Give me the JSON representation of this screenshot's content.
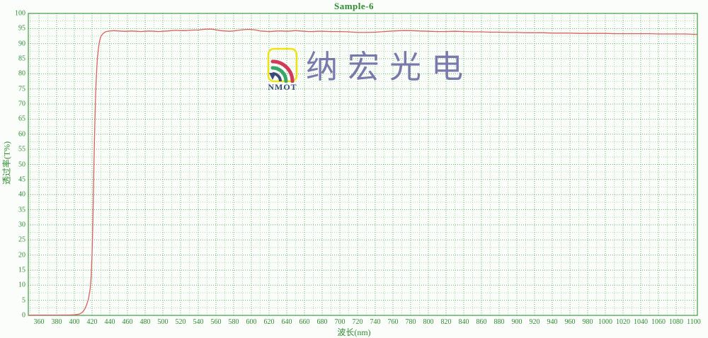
{
  "title": "Sample-6",
  "watermark": {
    "logo_text": "NMOT",
    "company_name": "纳宏光电"
  },
  "colors": {
    "background": "#fbfdfb",
    "axis_border": "#3f9e3f",
    "major_grid": "#63b063",
    "minor_grid": "#b2d8b2",
    "label_text": "#2e8b2e",
    "curve": "#dc6060",
    "watermark_text": "#6f6fa5",
    "logo_yellow": "#ece400",
    "logo_red": "#cf2b4b",
    "logo_green": "#2aa05e",
    "logo_navy": "#2f3a72"
  },
  "chart_data": {
    "type": "line",
    "title": "Sample-6",
    "xlabel": "波长(nm)",
    "ylabel": "透过率(T%)",
    "xlim": [
      348,
      1104
    ],
    "ylim": [
      0,
      100
    ],
    "x_tick_step": 20,
    "x_minor_step": 10,
    "y_tick_step": 5,
    "y_minor_step": 2.5,
    "grid": "dotted major and minor, green",
    "legend": "none",
    "x_ticks": [
      360,
      380,
      400,
      420,
      440,
      460,
      480,
      500,
      520,
      540,
      560,
      580,
      600,
      620,
      640,
      660,
      680,
      700,
      720,
      740,
      760,
      780,
      800,
      820,
      840,
      860,
      880,
      900,
      920,
      940,
      960,
      980,
      1000,
      1020,
      1040,
      1060,
      1080,
      1100
    ],
    "y_ticks": [
      0,
      5,
      10,
      15,
      20,
      25,
      30,
      35,
      40,
      45,
      50,
      55,
      60,
      65,
      70,
      75,
      80,
      85,
      90,
      95,
      100
    ],
    "series": [
      {
        "name": "Sample-6",
        "color": "#dc6060",
        "points": [
          [
            348,
            0.1
          ],
          [
            360,
            0.1
          ],
          [
            370,
            0.1
          ],
          [
            380,
            0.1
          ],
          [
            390,
            0.12
          ],
          [
            395,
            0.15
          ],
          [
            400,
            0.2
          ],
          [
            403,
            0.3
          ],
          [
            406,
            0.5
          ],
          [
            408,
            0.8
          ],
          [
            410,
            1.3
          ],
          [
            412,
            2.2
          ],
          [
            414,
            3.6
          ],
          [
            416,
            5.5
          ],
          [
            418,
            9
          ],
          [
            419,
            13
          ],
          [
            420,
            20
          ],
          [
            421,
            32
          ],
          [
            422,
            48
          ],
          [
            423,
            62
          ],
          [
            424,
            73
          ],
          [
            425,
            80
          ],
          [
            426,
            85
          ],
          [
            427,
            88
          ],
          [
            428,
            90
          ],
          [
            429,
            91.5
          ],
          [
            430,
            92.4
          ],
          [
            432,
            93.2
          ],
          [
            434,
            93.7
          ],
          [
            436,
            94
          ],
          [
            440,
            94.2
          ],
          [
            445,
            94.3
          ],
          [
            450,
            94.2
          ],
          [
            455,
            94.1
          ],
          [
            460,
            94.1
          ],
          [
            465,
            94.2
          ],
          [
            470,
            94.1
          ],
          [
            475,
            94
          ],
          [
            480,
            94.1
          ],
          [
            485,
            94.2
          ],
          [
            490,
            94.1
          ],
          [
            495,
            94
          ],
          [
            500,
            94.1
          ],
          [
            505,
            94.2
          ],
          [
            510,
            94.3
          ],
          [
            515,
            94.4
          ],
          [
            520,
            94.3
          ],
          [
            525,
            94.3
          ],
          [
            530,
            94.4
          ],
          [
            535,
            94.5
          ],
          [
            540,
            94.5
          ],
          [
            545,
            94.7
          ],
          [
            550,
            94.8
          ],
          [
            555,
            94.8
          ],
          [
            560,
            94.6
          ],
          [
            565,
            94.3
          ],
          [
            570,
            94.2
          ],
          [
            575,
            94.1
          ],
          [
            580,
            94.2
          ],
          [
            585,
            94.4
          ],
          [
            590,
            94.6
          ],
          [
            595,
            94.7
          ],
          [
            600,
            94.7
          ],
          [
            605,
            94.5
          ],
          [
            610,
            94.2
          ],
          [
            615,
            94.1
          ],
          [
            620,
            94
          ],
          [
            625,
            94.1
          ],
          [
            630,
            94.2
          ],
          [
            635,
            94.2
          ],
          [
            640,
            94.1
          ],
          [
            645,
            94.2
          ],
          [
            650,
            94.3
          ],
          [
            655,
            94.2
          ],
          [
            660,
            94.1
          ],
          [
            665,
            94
          ],
          [
            670,
            94
          ],
          [
            675,
            94.1
          ],
          [
            680,
            94.1
          ],
          [
            690,
            94
          ],
          [
            700,
            94
          ],
          [
            710,
            93.9
          ],
          [
            720,
            93.7
          ],
          [
            730,
            93.7
          ],
          [
            740,
            93.8
          ],
          [
            750,
            94
          ],
          [
            760,
            94.2
          ],
          [
            770,
            94.3
          ],
          [
            780,
            94.3
          ],
          [
            790,
            94.2
          ],
          [
            800,
            94.1
          ],
          [
            810,
            94
          ],
          [
            820,
            94
          ],
          [
            830,
            94.1
          ],
          [
            840,
            94
          ],
          [
            850,
            93.9
          ],
          [
            860,
            93.9
          ],
          [
            870,
            93.8
          ],
          [
            880,
            93.8
          ],
          [
            890,
            93.7
          ],
          [
            900,
            93.7
          ],
          [
            910,
            93.6
          ],
          [
            920,
            93.6
          ],
          [
            930,
            93.6
          ],
          [
            940,
            93.5
          ],
          [
            950,
            93.5
          ],
          [
            960,
            93.5
          ],
          [
            970,
            93.4
          ],
          [
            980,
            93.4
          ],
          [
            990,
            93.4
          ],
          [
            1000,
            93.4
          ],
          [
            1010,
            93.3
          ],
          [
            1020,
            93.3
          ],
          [
            1030,
            93.3
          ],
          [
            1040,
            93.3
          ],
          [
            1050,
            93.3
          ],
          [
            1060,
            93.2
          ],
          [
            1070,
            93.2
          ],
          [
            1080,
            93.2
          ],
          [
            1090,
            93.2
          ],
          [
            1100,
            93.1
          ],
          [
            1104,
            93.1
          ]
        ]
      }
    ]
  }
}
